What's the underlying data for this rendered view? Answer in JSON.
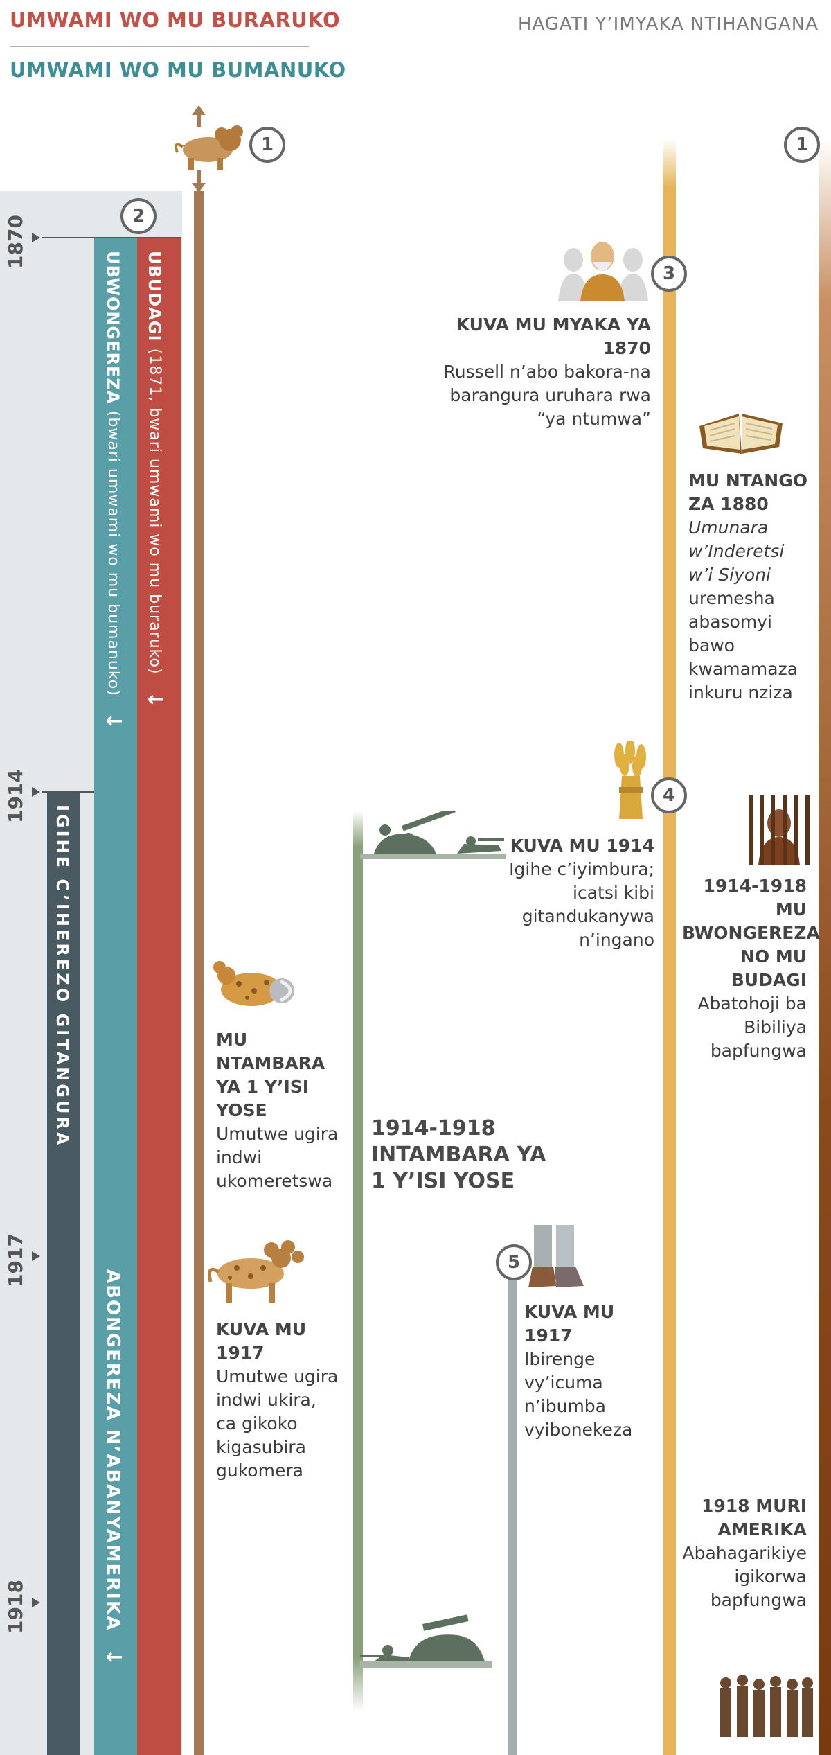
{
  "legend": {
    "top_label": "UMWAMI WO MU BURARUKO",
    "bottom_label": "UMWAMI WO MU BUMANUKO"
  },
  "header": {
    "title": "HAGATI Y’IMYAKA NTIHANGANA"
  },
  "colors": {
    "red": "#bf4d43",
    "teal": "#5a9ea7",
    "dark": "#4a5a63",
    "brown": "#a47a54",
    "green": "#8aa07a",
    "gold": "#e6b55b",
    "rust": "#8a4a1c",
    "panel": "#e4e8ea"
  },
  "years": [
    "1870",
    "1914",
    "1917",
    "1918"
  ],
  "bars": {
    "red": {
      "title": "UBUDAGI",
      "detail": "(1871, bwari umwami wo mu buraruko)",
      "arrow": "↓"
    },
    "teal": {
      "title": "UBWONGEREZA",
      "detail": "(bwari umwami wo mu bumanuko)",
      "arrow": "↓"
    },
    "teal2": {
      "title": "ABONGEREZA N’ABANYAMERIKA",
      "arrow": "↓"
    },
    "dark": {
      "title": "IGIHE C’IHEREZO GITANGURA"
    }
  },
  "markers": [
    "1",
    "2",
    "3",
    "4",
    "5",
    "1"
  ],
  "events": {
    "e1870": {
      "title": "KUVA MU MYAKA YA 1870",
      "body": "Russell n’abo bakora-na barangura uruhara rwa “ya ntumwa”"
    },
    "e1880": {
      "title": "MU NTANGO ZA 1880",
      "italic": "Umunara w’Inderetsi w’i Siyoni",
      "body": "uremesha abasomyi bawo kwamamaza inkuru nziza"
    },
    "e1914": {
      "title": "KUVA MU 1914",
      "body": "Igihe c’iyimbura; icatsi kibi gitandukanywa n’ingano"
    },
    "e1914_1918": {
      "title": "1914-1918 MU BWONGEREZA NO MU BUDAGI",
      "body": "Abatohoji ba Bibiliya bapfungwa"
    },
    "ww1_head": {
      "title": "MU NTAMBARA YA 1 Y’ISI YOSE",
      "body": "Umutwe ugira indwi ukomeretswa"
    },
    "war": {
      "title": "1914-1918 INTAMBARA YA 1 Y’ISI YOSE"
    },
    "e1917_beast": {
      "title": "KUVA MU 1917",
      "body": "Umutwe ugira indwi ukira, ca gikoko kigasubira gukomera"
    },
    "e1917_feet": {
      "title": "KUVA MU 1917",
      "body": "Ibirenge vy’icuma n’ibumba vyibonekeza"
    },
    "e1918": {
      "title": "1918 MURI AMERIKA",
      "body": "Abahagarikiye igikorwa bapfungwa"
    }
  },
  "icons": [
    "lion-beast-icon",
    "russell-portrait-icon",
    "open-bible-icon",
    "wheat-sheaf-icon",
    "prison-bars-icon",
    "wounded-beast-icon",
    "soldiers-icon",
    "healed-beast-icon",
    "iron-clay-feet-icon",
    "prisoners-group-icon"
  ]
}
